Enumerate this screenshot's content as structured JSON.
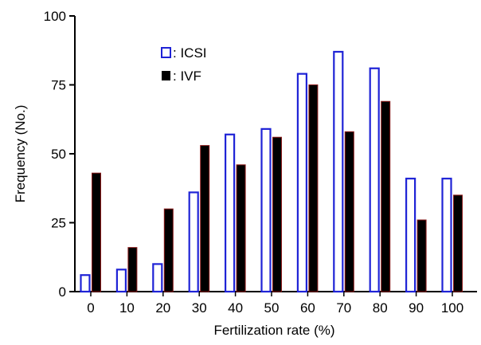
{
  "chart_data": {
    "type": "bar",
    "title": "",
    "xlabel": "Fertilization rate (%)",
    "ylabel": "Frequency (No.)",
    "categories": [
      "0",
      "10",
      "20",
      "30",
      "40",
      "50",
      "60",
      "70",
      "80",
      "90",
      "100"
    ],
    "ylim": [
      0,
      100
    ],
    "yticks": [
      "0",
      "25",
      "50",
      "75",
      "100"
    ],
    "legend_position": "top-left",
    "grid": false,
    "series": [
      {
        "name": ": ICSI",
        "style": "outline",
        "color": "#1f23d6",
        "values": [
          6,
          8,
          10,
          36,
          57,
          59,
          79,
          87,
          81,
          41,
          41
        ]
      },
      {
        "name": ": IVF",
        "style": "filled",
        "color": "#000000",
        "edge_color": "#8b1a1a",
        "values": [
          43,
          16,
          30,
          53,
          46,
          56,
          75,
          58,
          69,
          26,
          35
        ]
      }
    ]
  }
}
